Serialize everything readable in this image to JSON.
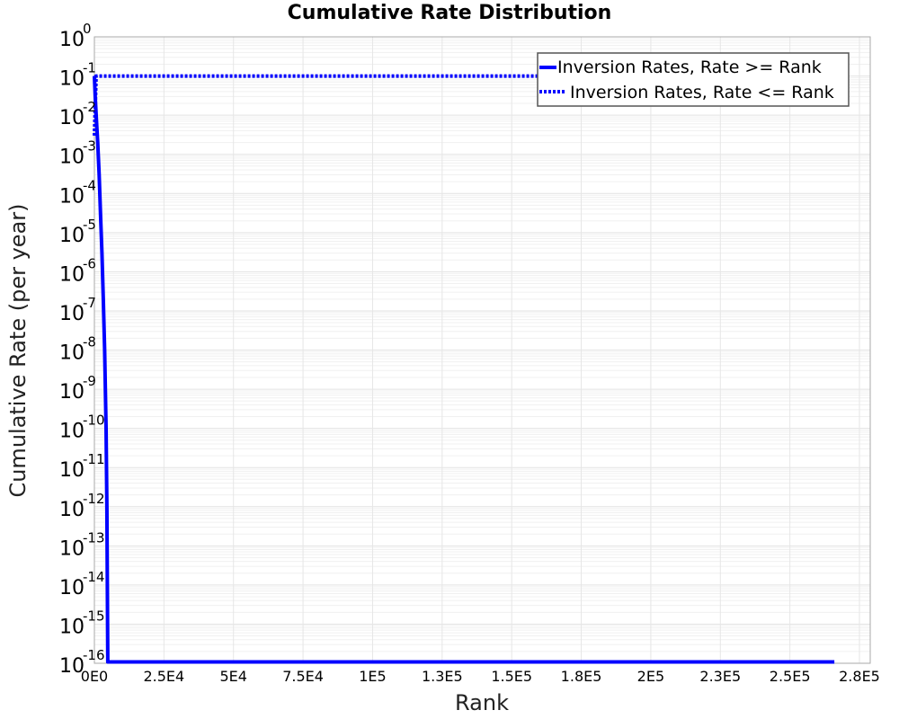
{
  "chart_data": {
    "type": "line",
    "title": "Cumulative Rate Distribution",
    "xlabel": "Rank",
    "ylabel": "Cumulative Rate (per year)",
    "xscale": "linear",
    "yscale": "log",
    "xlim": [
      0,
      280000
    ],
    "ylim": [
      1e-16,
      1
    ],
    "grid": true,
    "legend_position": "upper right",
    "x_ticks": [
      {
        "value": 0,
        "label": "0E0"
      },
      {
        "value": 25000,
        "label": "2.5E4"
      },
      {
        "value": 50000,
        "label": "5E4"
      },
      {
        "value": 75000,
        "label": "7.5E4"
      },
      {
        "value": 100000,
        "label": "1E5"
      },
      {
        "value": 125000,
        "label": "1.3E5"
      },
      {
        "value": 150000,
        "label": "1.5E5"
      },
      {
        "value": 175000,
        "label": "1.8E5"
      },
      {
        "value": 200000,
        "label": "2E5"
      },
      {
        "value": 225000,
        "label": "2.3E5"
      },
      {
        "value": 250000,
        "label": "2.5E5"
      },
      {
        "value": 275000,
        "label": "2.8E5"
      }
    ],
    "y_ticks": [
      {
        "exp": "0"
      },
      {
        "exp": "-1"
      },
      {
        "exp": "-2"
      },
      {
        "exp": "-3"
      },
      {
        "exp": "-4"
      },
      {
        "exp": "-5"
      },
      {
        "exp": "-6"
      },
      {
        "exp": "-7"
      },
      {
        "exp": "-8"
      },
      {
        "exp": "-9"
      },
      {
        "exp": "-10"
      },
      {
        "exp": "-11"
      },
      {
        "exp": "-12"
      },
      {
        "exp": "-13"
      },
      {
        "exp": "-14"
      },
      {
        "exp": "-15"
      },
      {
        "exp": "-16"
      }
    ],
    "series": [
      {
        "name": "Inversion Rates, Rate >= Rank",
        "style": "solid",
        "color": "#0000ff",
        "points": [
          [
            0,
            0.1
          ],
          [
            300,
            0.03
          ],
          [
            700,
            0.008
          ],
          [
            1200,
            0.002
          ],
          [
            1700,
            0.0003
          ],
          [
            2200,
            3e-05
          ],
          [
            2700,
            3e-06
          ],
          [
            3200,
            2e-07
          ],
          [
            3700,
            1e-08
          ],
          [
            4200,
            1e-10
          ],
          [
            4500,
            1e-12
          ],
          [
            4800,
            1e-16
          ],
          [
            266000,
            1e-16
          ]
        ]
      },
      {
        "name": "Inversion Rates, Rate <= Rank",
        "style": "dotted",
        "color": "#0000ff",
        "points": [
          [
            0,
            0.003
          ],
          [
            600,
            0.1
          ],
          [
            5000,
            0.1
          ],
          [
            266000,
            0.1
          ]
        ]
      }
    ]
  },
  "base_label": "10"
}
